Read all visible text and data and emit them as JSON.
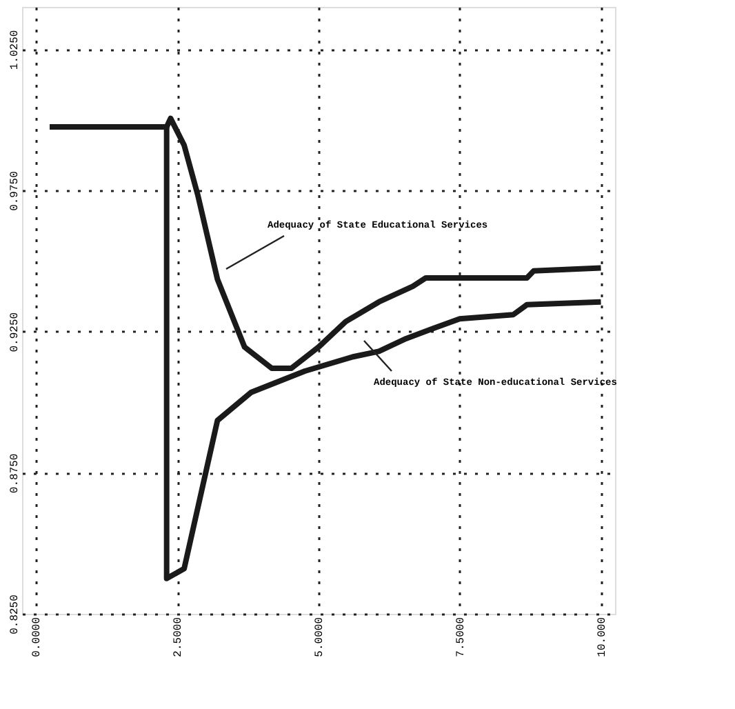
{
  "chart_data": {
    "type": "line",
    "xlim": [
      -0.25,
      10.25
    ],
    "ylim": [
      0.825,
      1.04
    ],
    "xticks": [
      {
        "value": 0,
        "label": "0.0000"
      },
      {
        "value": 2.5,
        "label": "2.5000"
      },
      {
        "value": 5,
        "label": "5.0000"
      },
      {
        "value": 7.5,
        "label": "7.5000"
      },
      {
        "value": 10,
        "label": "10.000"
      }
    ],
    "yticks": [
      {
        "value": 0.825,
        "label": "0.8250"
      },
      {
        "value": 0.875,
        "label": "0.8750"
      },
      {
        "value": 0.925,
        "label": "0.9250"
      },
      {
        "value": 0.975,
        "label": "0.9750"
      },
      {
        "value": 1.025,
        "label": "1.0250"
      }
    ],
    "grid": true,
    "line_style": "solid",
    "marker": "none",
    "series": [
      {
        "color": "#1a1a1a",
        "x": [
          0.24,
          2.31,
          2.38,
          2.62,
          2.86,
          3.21,
          3.69,
          4.17,
          4.52,
          5.0,
          5.48,
          6.07,
          6.67,
          6.9,
          7.5,
          8.69,
          8.81,
          10.0
        ],
        "values": [
          0.9975,
          0.9975,
          1.0005,
          0.991,
          0.9735,
          0.9435,
          0.9195,
          0.912,
          0.912,
          0.9195,
          0.9285,
          0.9355,
          0.941,
          0.944,
          0.944,
          0.944,
          0.9465,
          0.9475
        ]
      },
      {
        "color": "#1a1a1a",
        "x": [
          0.24,
          2.31,
          2.31,
          2.62,
          3.21,
          3.81,
          4.76,
          5.6,
          6.07,
          6.55,
          7.02,
          7.5,
          8.45,
          8.69,
          10.0
        ],
        "values": [
          0.9975,
          0.9975,
          0.8375,
          0.841,
          0.8935,
          0.9035,
          0.911,
          0.916,
          0.918,
          0.9225,
          0.926,
          0.9295,
          0.931,
          0.9345,
          0.9355
        ]
      }
    ],
    "annotations": [
      "Adequacy of State Educational Services",
      "Adequacy of State Non-educational Services"
    ]
  }
}
